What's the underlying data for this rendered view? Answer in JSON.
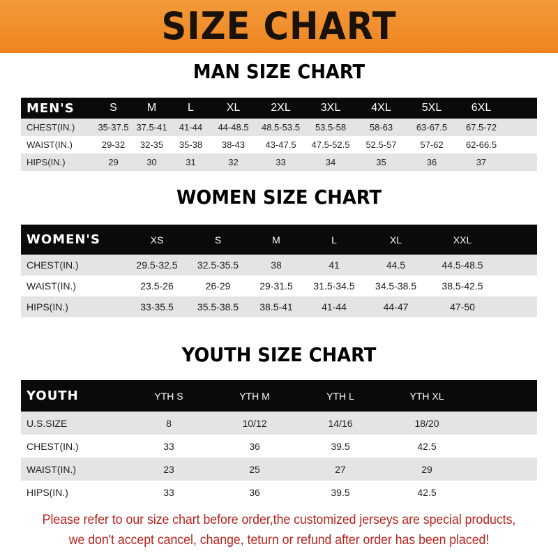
{
  "banner_title": "SIZE CHART",
  "men": {
    "title": "MAN SIZE CHART",
    "header": [
      "MEN'S",
      "S",
      "M",
      "L",
      "XL",
      "2XL",
      "3XL",
      "4XL",
      "5XL",
      "6XL"
    ],
    "rows": [
      [
        "CHEST(IN.)",
        "35-37.5",
        "37.5-41",
        "41-44",
        "44-48.5",
        "48.5-53.5",
        "53.5-58",
        "58-63",
        "63-67.5",
        "67.5-72"
      ],
      [
        "WAIST(IN.)",
        "29-32",
        "32-35",
        "35-38",
        "38-43",
        "43-47.5",
        "47.5-52.5",
        "52.5-57",
        "57-62",
        "62-66.5"
      ],
      [
        "HIPS(IN.)",
        "29",
        "30",
        "31",
        "32",
        "33",
        "34",
        "35",
        "36",
        "37"
      ]
    ]
  },
  "women": {
    "title": "WOMEN SIZE CHART",
    "header": [
      "WOMEN'S",
      "XS",
      "S",
      "M",
      "L",
      "XL",
      "XXL"
    ],
    "rows": [
      [
        "CHEST(IN.)",
        "29.5-32.5",
        "32.5-35.5",
        "38",
        "41",
        "44.5",
        "44.5-48.5"
      ],
      [
        "WAIST(IN.)",
        "23.5-26",
        "26-29",
        "29-31.5",
        "31.5-34.5",
        "34.5-38.5",
        "38.5-42.5"
      ],
      [
        "HIPS(IN.)",
        "33-35.5",
        "35.5-38.5",
        "38.5-41",
        "41-44",
        "44-47",
        "47-50"
      ]
    ]
  },
  "youth": {
    "title": "YOUTH SIZE CHART",
    "header": [
      "YOUTH",
      "YTH S",
      "YTH M",
      "YTH L",
      "YTH XL"
    ],
    "rows": [
      [
        "U.S.SIZE",
        "8",
        "10/12",
        "14/16",
        "18/20"
      ],
      [
        "CHEST(IN.)",
        "33",
        "36",
        "39.5",
        "42.5"
      ],
      [
        "WAIST(IN.)",
        "23",
        "25",
        "27",
        "29"
      ],
      [
        "HIPS(IN.)",
        "33",
        "36",
        "39.5",
        "42.5"
      ]
    ]
  },
  "notice": {
    "line1": "Please refer to our size chart before order,the customized jerseys are special products,",
    "line2": "we don't accept cancel, change, teturn or refund after order has been placed!"
  },
  "colors": {
    "banner": "#ee8420",
    "header_row": "#0a0a0a",
    "stripe": "#e4e4e4",
    "notice": "#b8221c"
  }
}
